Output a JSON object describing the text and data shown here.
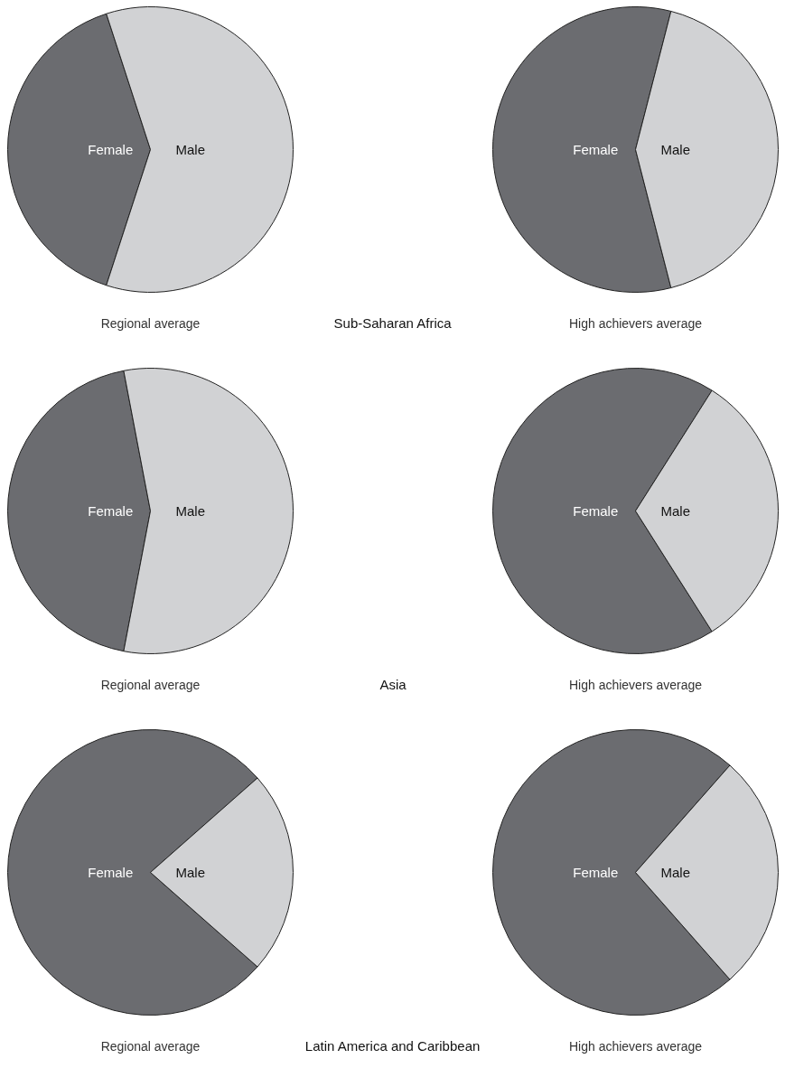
{
  "chart_data": [
    {
      "type": "pie",
      "title": "Regional average",
      "categories": [
        "Female",
        "Male"
      ],
      "values": [
        40,
        60
      ],
      "colors": [
        "#6b6c70",
        "#d1d2d4"
      ]
    },
    {
      "type": "other",
      "title": "Sub-Saharan Africa"
    },
    {
      "type": "pie",
      "title": "High achievers average",
      "categories": [
        "Female",
        "Male"
      ],
      "values": [
        58,
        42
      ],
      "colors": [
        "#6b6c70",
        "#d1d2d4"
      ]
    },
    {
      "type": "pie",
      "title": "Regional average",
      "categories": [
        "Female",
        "Male"
      ],
      "values": [
        44,
        56
      ],
      "colors": [
        "#6b6c70",
        "#d1d2d4"
      ]
    },
    {
      "type": "other",
      "title": "Asia"
    },
    {
      "type": "pie",
      "title": "High achievers average",
      "categories": [
        "Female",
        "Male"
      ],
      "values": [
        68,
        32
      ],
      "colors": [
        "#6b6c70",
        "#d1d2d4"
      ]
    },
    {
      "type": "pie",
      "title": "Regional average",
      "categories": [
        "Female",
        "Male"
      ],
      "values": [
        77,
        23
      ],
      "colors": [
        "#6b6c70",
        "#d1d2d4"
      ]
    },
    {
      "type": "other",
      "title": "Latin America and Caribbean"
    },
    {
      "type": "pie",
      "title": "High achievers average",
      "categories": [
        "Female",
        "Male"
      ],
      "values": [
        73,
        27
      ],
      "colors": [
        "#6b6c70",
        "#d1d2d4"
      ]
    }
  ]
}
